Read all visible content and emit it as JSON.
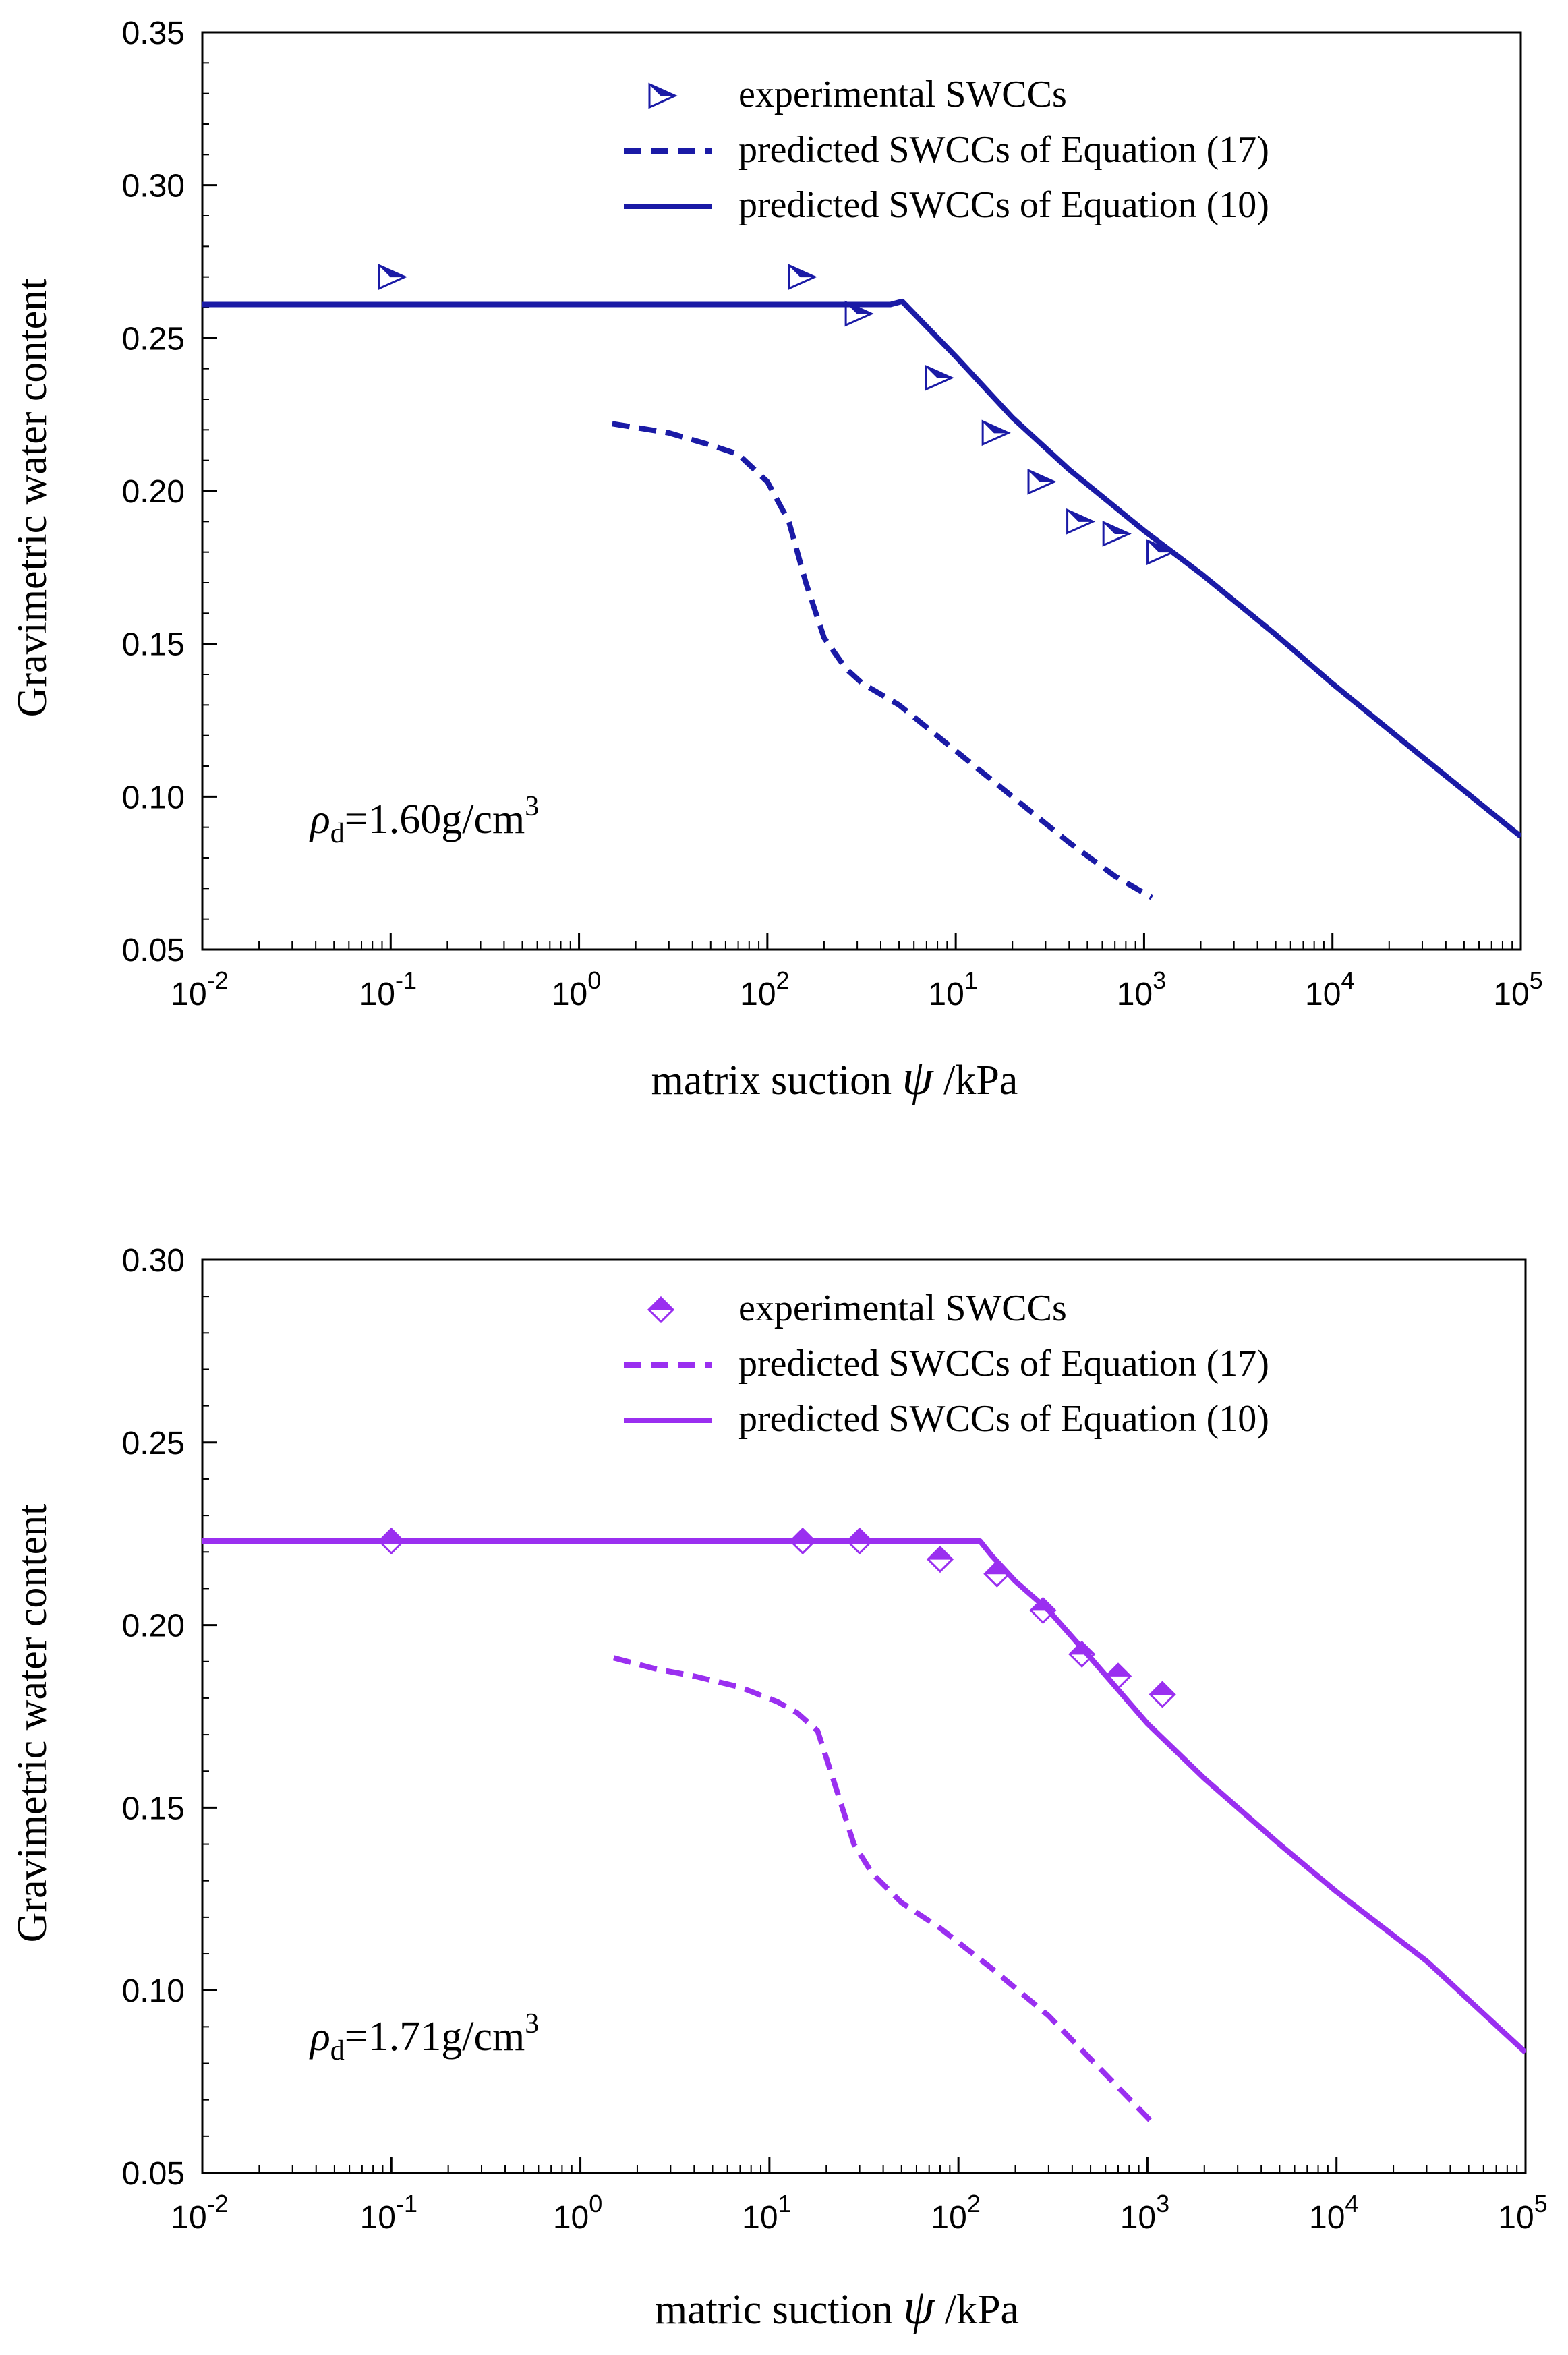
{
  "chart_data": [
    {
      "type": "line",
      "color": "#1a1aa6",
      "marker": "triangle-right",
      "xscale": "log",
      "xlim": [
        0.01,
        100000
      ],
      "ylim": [
        0.05,
        0.35
      ],
      "xticks": [
        {
          "base": "10",
          "exp": "-2"
        },
        {
          "base": "10",
          "exp": "-1"
        },
        {
          "base": "10",
          "exp": "0"
        },
        {
          "base": "10",
          "exp": "2"
        },
        {
          "base": "10",
          "exp": "1"
        },
        {
          "base": "10",
          "exp": "3"
        },
        {
          "base": "10",
          "exp": "4"
        },
        {
          "base": "10",
          "exp": "5"
        }
      ],
      "yticks": [
        "0.05",
        "0.10",
        "0.15",
        "0.20",
        "0.25",
        "0.30",
        "0.35"
      ],
      "xlabel": {
        "text": "matrix suction",
        "symbol": "ψ",
        "unit": "/kPa"
      },
      "ylabel": "Gravimetric water content",
      "annotation": {
        "symbol": "ρ",
        "subscript": "d",
        "value": "=1.60g/cm",
        "superscript": "3"
      },
      "legend": {
        "position": "top-right",
        "entries": [
          "experimental SWCCs",
          "predicted SWCCs of Equation (17)",
          "predicted SWCCs of Equation (10)"
        ]
      },
      "series": [
        {
          "name": "experimental SWCCs",
          "style": "marker",
          "points": [
            [
              0.1,
              0.27
            ],
            [
              15,
              0.27
            ],
            [
              30,
              0.258
            ],
            [
              80,
              0.237
            ],
            [
              160,
              0.219
            ],
            [
              280,
              0.203
            ],
            [
              450,
              0.19
            ],
            [
              700,
              0.186
            ],
            [
              1200,
              0.18
            ]
          ]
        },
        {
          "name": "predicted SWCCs of Equation (17)",
          "style": "dashed",
          "points": [
            [
              1.5,
              0.222
            ],
            [
              3,
              0.219
            ],
            [
              5,
              0.215
            ],
            [
              7,
              0.212
            ],
            [
              10,
              0.203
            ],
            [
              13,
              0.19
            ],
            [
              16,
              0.17
            ],
            [
              20,
              0.152
            ],
            [
              26,
              0.142
            ],
            [
              32,
              0.137
            ],
            [
              50,
              0.13
            ],
            [
              100,
              0.115
            ],
            [
              200,
              0.1
            ],
            [
              400,
              0.085
            ],
            [
              700,
              0.074
            ],
            [
              1100,
              0.067
            ]
          ]
        },
        {
          "name": "predicted SWCCs of Equation (10)",
          "style": "solid",
          "points": [
            [
              0.01,
              0.261
            ],
            [
              45,
              0.261
            ],
            [
              52,
              0.262
            ],
            [
              100,
              0.244
            ],
            [
              200,
              0.224
            ],
            [
              400,
              0.207
            ],
            [
              1000,
              0.187
            ],
            [
              2000,
              0.173
            ],
            [
              5000,
              0.153
            ],
            [
              10000,
              0.137
            ],
            [
              30000,
              0.113
            ],
            [
              100000,
              0.087
            ]
          ]
        }
      ]
    },
    {
      "type": "line",
      "color": "#9a2ff0",
      "marker": "diamond",
      "xscale": "log",
      "xlim": [
        0.01,
        100000
      ],
      "ylim": [
        0.05,
        0.3
      ],
      "xticks": [
        {
          "base": "10",
          "exp": "-2"
        },
        {
          "base": "10",
          "exp": "-1"
        },
        {
          "base": "10",
          "exp": "0"
        },
        {
          "base": "10",
          "exp": "1"
        },
        {
          "base": "10",
          "exp": "2"
        },
        {
          "base": "10",
          "exp": "3"
        },
        {
          "base": "10",
          "exp": "4"
        },
        {
          "base": "10",
          "exp": "5"
        }
      ],
      "yticks": [
        "0.05",
        "0.10",
        "0.15",
        "0.20",
        "0.25",
        "0.30"
      ],
      "xlabel": {
        "text": "matric suction",
        "symbol": "ψ",
        "unit": "/kPa"
      },
      "ylabel": "Gravimetric water content",
      "annotation": {
        "symbol": "ρ",
        "subscript": "d",
        "value": "=1.71g/cm",
        "superscript": "3"
      },
      "legend": {
        "position": "top-right",
        "entries": [
          "experimental SWCCs",
          "predicted SWCCs of Equation (17)",
          "predicted SWCCs of Equation (10)"
        ]
      },
      "series": [
        {
          "name": "experimental SWCCs",
          "style": "marker",
          "points": [
            [
              0.1,
              0.223
            ],
            [
              15,
              0.223
            ],
            [
              30,
              0.223
            ],
            [
              80,
              0.218
            ],
            [
              160,
              0.214
            ],
            [
              280,
              0.204
            ],
            [
              450,
              0.192
            ],
            [
              700,
              0.186
            ],
            [
              1200,
              0.181
            ]
          ]
        },
        {
          "name": "predicted SWCCs of Equation (17)",
          "style": "dashed",
          "points": [
            [
              1.5,
              0.191
            ],
            [
              2.5,
              0.188
            ],
            [
              4,
              0.186
            ],
            [
              7,
              0.183
            ],
            [
              11,
              0.179
            ],
            [
              14,
              0.176
            ],
            [
              18,
              0.171
            ],
            [
              22,
              0.157
            ],
            [
              28,
              0.14
            ],
            [
              35,
              0.132
            ],
            [
              50,
              0.124
            ],
            [
              80,
              0.117
            ],
            [
              150,
              0.106
            ],
            [
              300,
              0.093
            ],
            [
              600,
              0.077
            ],
            [
              1100,
              0.063
            ]
          ]
        },
        {
          "name": "predicted SWCCs of Equation (10)",
          "style": "solid",
          "points": [
            [
              0.01,
              0.223
            ],
            [
              130,
              0.223
            ],
            [
              150,
              0.219
            ],
            [
              200,
              0.212
            ],
            [
              300,
              0.204
            ],
            [
              500,
              0.191
            ],
            [
              1000,
              0.173
            ],
            [
              2000,
              0.158
            ],
            [
              5000,
              0.14
            ],
            [
              10000,
              0.127
            ],
            [
              30000,
              0.108
            ],
            [
              100000,
              0.083
            ]
          ]
        }
      ]
    }
  ]
}
